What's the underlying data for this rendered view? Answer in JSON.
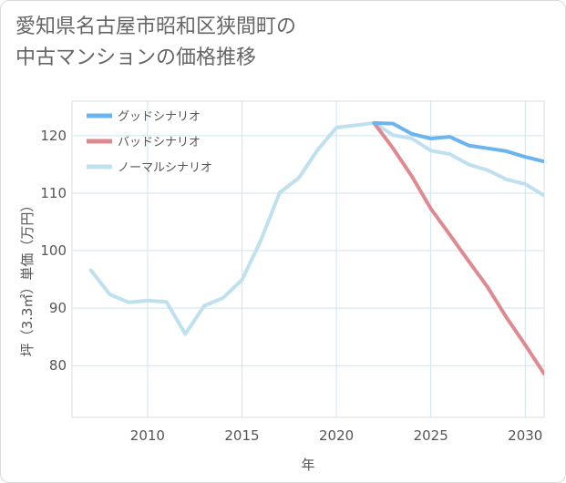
{
  "title_lines": [
    "愛知県名古屋市昭和区狭間町の",
    "中古マンションの価格推移"
  ],
  "chart_data": {
    "type": "line",
    "xlabel": "年",
    "ylabel": "坪（3.3㎡）単価（万円）",
    "xlim": [
      2006,
      2031
    ],
    "ylim": [
      71,
      126
    ],
    "xticks": [
      2010,
      2015,
      2020,
      2025,
      2030
    ],
    "yticks": [
      80,
      90,
      100,
      110,
      120
    ],
    "grid": true,
    "legend_position": "top-left",
    "series": [
      {
        "name": "グッドシナリオ",
        "color": "#6cb4ee",
        "x": [
          2022,
          2023,
          2024,
          2025,
          2026,
          2027,
          2028,
          2029,
          2030,
          2031
        ],
        "y": [
          122.2,
          122.1,
          120.3,
          119.5,
          119.8,
          118.3,
          117.8,
          117.3,
          116.3,
          115.5
        ]
      },
      {
        "name": "バッドシナリオ",
        "color": "#df8a90",
        "x": [
          2022,
          2023,
          2024,
          2025,
          2026,
          2027,
          2028,
          2029,
          2030,
          2031
        ],
        "y": [
          122.2,
          117.8,
          112.9,
          107.3,
          102.8,
          98.2,
          93.7,
          88.4,
          83.6,
          78.6
        ]
      },
      {
        "name": "ノーマルシナリオ",
        "color": "#bfe0ee",
        "x": [
          2007,
          2008,
          2009,
          2010,
          2011,
          2012,
          2013,
          2014,
          2015,
          2016,
          2017,
          2018,
          2019,
          2020,
          2021,
          2022,
          2023,
          2024,
          2025,
          2026,
          2027,
          2028,
          2029,
          2030,
          2031
        ],
        "y": [
          96.6,
          92.4,
          91.0,
          91.3,
          91.1,
          85.5,
          90.4,
          91.8,
          94.9,
          101.8,
          110.1,
          112.6,
          117.5,
          121.4,
          121.8,
          122.2,
          120.1,
          119.5,
          117.4,
          116.8,
          115.0,
          114.0,
          112.4,
          111.6,
          109.6
        ]
      }
    ]
  }
}
